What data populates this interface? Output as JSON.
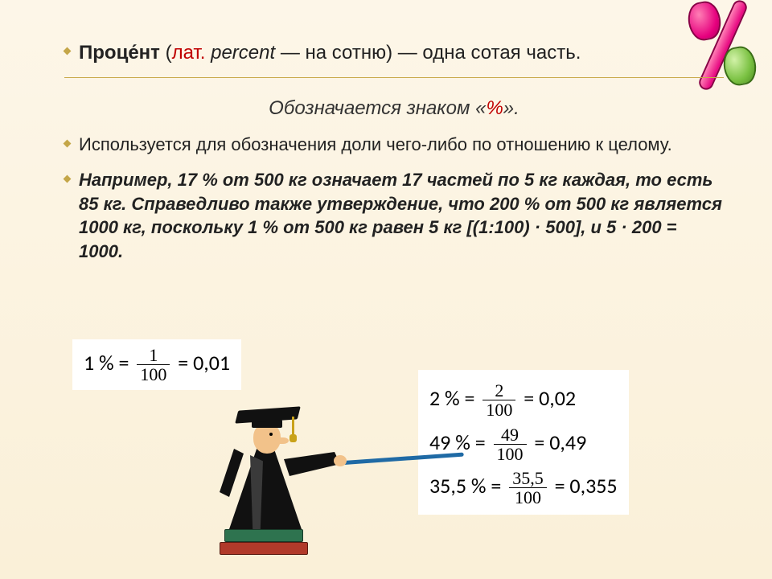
{
  "colors": {
    "bg_top": "#fdf6e8",
    "bg_bottom": "#faf0d8",
    "bullet": "#c4a648",
    "divider": "#c9a94a",
    "accent_red": "#c00000",
    "text": "#222222",
    "formula_bg": "#ffffff",
    "percent_pink": "#e6007e",
    "percent_green": "#7ac142",
    "pointer_blue": "#1f6aa5",
    "book_red": "#b13a2a",
    "book_green": "#2e734f"
  },
  "typography": {
    "body_fontsize": 24,
    "list_fontsize": 22,
    "formula_fontsize": 26,
    "font_family": "Arial"
  },
  "definition": {
    "term": "Проце́нт",
    "open_paren": " (",
    "lat_label": "лат.",
    "lat_space": " ",
    "lat_word": "percent",
    "rest": " — на сотню) — одна сотая часть."
  },
  "denote": {
    "prefix": "Обозначается знаком «",
    "symbol": "%",
    "suffix": "»."
  },
  "usage": "Используется для обозначения доли чего-либо по отношению к целому.",
  "example": "Например, 17 % от 500 кг означает 17 частей по 5 кг каждая, то есть 85 кг. Справедливо также утверждение, что 200 % от 500 кг является 1000 кг, поскольку 1 % от 500 кг равен 5 кг [(1:100) · 500], и 5 · 200 = 1000.",
  "formulas": {
    "box1": [
      {
        "lhs": "1 % = ",
        "num": "1",
        "den": "100",
        "rhs": " = 0,01"
      }
    ],
    "box2": [
      {
        "lhs": "2 % = ",
        "num": "2",
        "den": "100",
        "rhs": " = 0,02"
      },
      {
        "lhs": "49 % = ",
        "num": "49",
        "den": "100",
        "rhs": " = 0,49"
      },
      {
        "lhs": "35,5 % = ",
        "num": "35,5",
        "den": "100",
        "rhs": " = 0,355"
      }
    ]
  },
  "graphics": {
    "percent_icon": "percent-sign",
    "teacher_icon": "teacher-with-pointer"
  }
}
